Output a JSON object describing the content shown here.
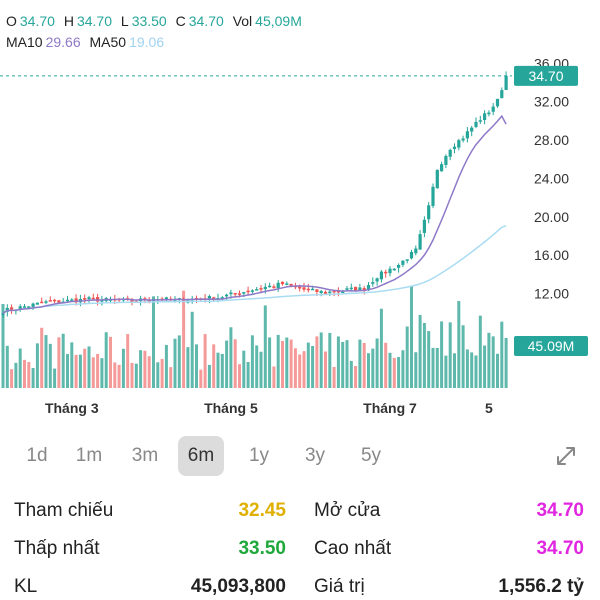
{
  "header": {
    "o_label": "O",
    "o": "34.70",
    "h_label": "H",
    "h": "34.70",
    "l_label": "L",
    "l": "33.50",
    "c_label": "C",
    "c": "34.70",
    "vol_label": "Vol",
    "vol": "45,09M",
    "ma10_label": "MA10",
    "ma10": "29.66",
    "ma50_label": "MA50",
    "ma50": "19.06"
  },
  "colors": {
    "up": "#26a69a",
    "down": "#ef5350",
    "vol_up": "#5fb8ac",
    "vol_down": "#f49a98",
    "ma10": "#8e79c8",
    "ma50": "#a9dcf3",
    "ref_price": "#e0b000",
    "low_price": "#1fa83a",
    "open_high": "#e026e0"
  },
  "chart_data": {
    "type": "candlestick",
    "y_ticks": [
      "36.00",
      "32.00",
      "28.00",
      "24.00",
      "20.00",
      "16.00",
      "12.00"
    ],
    "ylim": [
      8.2,
      37.6
    ],
    "x_labels": [
      {
        "label": "Tháng 3",
        "index": 16
      },
      {
        "label": "Tháng 5",
        "index": 53
      },
      {
        "label": "Tháng 7",
        "index": 90
      },
      {
        "label": "5",
        "index": 113
      }
    ],
    "price_tag": "34.70",
    "last_price": 34.7,
    "volume_tag": "45.09M",
    "ma10_last": 29.66,
    "ma50_last": 19.06,
    "candle_count": 118,
    "price_anchors": [
      [
        0,
        10.2
      ],
      [
        10,
        11.1
      ],
      [
        20,
        11.4
      ],
      [
        30,
        11.2
      ],
      [
        35,
        11.5
      ],
      [
        40,
        11.3
      ],
      [
        50,
        11.6
      ],
      [
        60,
        12.6
      ],
      [
        65,
        13.0
      ],
      [
        70,
        12.4
      ],
      [
        75,
        12.1
      ],
      [
        80,
        12.4
      ],
      [
        84,
        12.5
      ],
      [
        87,
        13.8
      ],
      [
        92,
        15.0
      ],
      [
        96,
        16.5
      ],
      [
        99,
        21.0
      ],
      [
        101,
        25.0
      ],
      [
        104,
        27.2
      ],
      [
        107,
        28.3
      ],
      [
        110,
        29.8
      ],
      [
        113,
        31.0
      ],
      [
        115,
        32.1
      ],
      [
        117,
        34.7
      ]
    ]
  },
  "periods": [
    "1d",
    "1m",
    "3m",
    "6m",
    "1y",
    "3y",
    "5y"
  ],
  "active_period": "6m",
  "stats": {
    "ref_label": "Tham chiếu",
    "ref_value": "32.45",
    "open_label": "Mở cửa",
    "open_value": "34.70",
    "low_label": "Thấp nhất",
    "low_value": "33.50",
    "high_label": "Cao nhất",
    "high_value": "34.70",
    "kl_label": "KL",
    "kl_value": "45,093,800",
    "value_label": "Giá trị",
    "value_value": "1,556.2 tỷ"
  }
}
